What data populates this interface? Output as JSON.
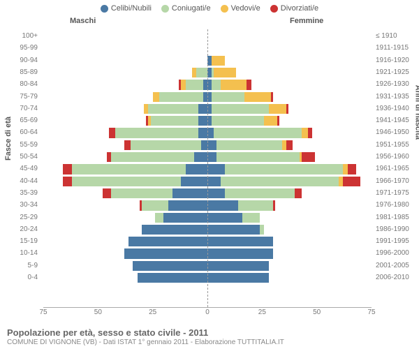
{
  "colors": {
    "single": "#4a79a4",
    "married": "#b6d7a8",
    "widowed": "#f4c04f",
    "divorced": "#cc3333",
    "text": "#666666",
    "axis": "#aaaaaa"
  },
  "legend": [
    {
      "key": "single",
      "label": "Celibi/Nubili"
    },
    {
      "key": "married",
      "label": "Coniugati/e"
    },
    {
      "key": "widowed",
      "label": "Vedovi/e"
    },
    {
      "key": "divorced",
      "label": "Divorziati/e"
    }
  ],
  "headers": {
    "male": "Maschi",
    "female": "Femmine"
  },
  "y_title": "Fasce di età",
  "y2_title": "Anni di nascita",
  "x_ticks": [
    -75,
    -50,
    -25,
    0,
    25,
    50,
    75
  ],
  "x_max": 75,
  "footer_title": "Popolazione per età, sesso e stato civile - 2011",
  "footer_sub": "COMUNE DI VIGNONE (VB) - Dati ISTAT 1° gennaio 2011 - Elaborazione TUTTITALIA.IT",
  "rows": [
    {
      "age": "100+",
      "birth": "≤ 1910",
      "m": {
        "s": 0,
        "c": 0,
        "w": 0,
        "d": 0
      },
      "f": {
        "s": 0,
        "c": 0,
        "w": 0,
        "d": 0
      }
    },
    {
      "age": "95-99",
      "birth": "1911-1915",
      "m": {
        "s": 0,
        "c": 0,
        "w": 0,
        "d": 0
      },
      "f": {
        "s": 0,
        "c": 0,
        "w": 0,
        "d": 0
      }
    },
    {
      "age": "90-94",
      "birth": "1916-1920",
      "m": {
        "s": 0,
        "c": 0,
        "w": 0,
        "d": 0
      },
      "f": {
        "s": 2,
        "c": 0,
        "w": 6,
        "d": 0
      }
    },
    {
      "age": "85-89",
      "birth": "1921-1925",
      "m": {
        "s": 0,
        "c": 5,
        "w": 2,
        "d": 0
      },
      "f": {
        "s": 2,
        "c": 1,
        "w": 10,
        "d": 0
      }
    },
    {
      "age": "80-84",
      "birth": "1926-1930",
      "m": {
        "s": 2,
        "c": 8,
        "w": 2,
        "d": 1
      },
      "f": {
        "s": 2,
        "c": 4,
        "w": 12,
        "d": 2
      }
    },
    {
      "age": "75-79",
      "birth": "1931-1935",
      "m": {
        "s": 2,
        "c": 20,
        "w": 3,
        "d": 0
      },
      "f": {
        "s": 2,
        "c": 15,
        "w": 12,
        "d": 1
      }
    },
    {
      "age": "70-74",
      "birth": "1936-1940",
      "m": {
        "s": 4,
        "c": 23,
        "w": 2,
        "d": 0
      },
      "f": {
        "s": 2,
        "c": 26,
        "w": 8,
        "d": 1
      }
    },
    {
      "age": "65-69",
      "birth": "1941-1945",
      "m": {
        "s": 4,
        "c": 22,
        "w": 1,
        "d": 1
      },
      "f": {
        "s": 2,
        "c": 24,
        "w": 6,
        "d": 1
      }
    },
    {
      "age": "60-64",
      "birth": "1946-1950",
      "m": {
        "s": 4,
        "c": 38,
        "w": 0,
        "d": 3
      },
      "f": {
        "s": 3,
        "c": 40,
        "w": 3,
        "d": 2
      }
    },
    {
      "age": "55-59",
      "birth": "1951-1955",
      "m": {
        "s": 3,
        "c": 32,
        "w": 0,
        "d": 3
      },
      "f": {
        "s": 4,
        "c": 30,
        "w": 2,
        "d": 3
      }
    },
    {
      "age": "50-54",
      "birth": "1956-1960",
      "m": {
        "s": 6,
        "c": 38,
        "w": 0,
        "d": 2
      },
      "f": {
        "s": 4,
        "c": 38,
        "w": 1,
        "d": 6
      }
    },
    {
      "age": "45-49",
      "birth": "1961-1965",
      "m": {
        "s": 10,
        "c": 52,
        "w": 0,
        "d": 4
      },
      "f": {
        "s": 8,
        "c": 54,
        "w": 2,
        "d": 4
      }
    },
    {
      "age": "40-44",
      "birth": "1966-1970",
      "m": {
        "s": 12,
        "c": 50,
        "w": 0,
        "d": 4
      },
      "f": {
        "s": 6,
        "c": 54,
        "w": 2,
        "d": 8
      }
    },
    {
      "age": "35-39",
      "birth": "1971-1975",
      "m": {
        "s": 16,
        "c": 28,
        "w": 0,
        "d": 4
      },
      "f": {
        "s": 8,
        "c": 32,
        "w": 0,
        "d": 3
      }
    },
    {
      "age": "30-34",
      "birth": "1976-1980",
      "m": {
        "s": 18,
        "c": 12,
        "w": 0,
        "d": 1
      },
      "f": {
        "s": 14,
        "c": 16,
        "w": 0,
        "d": 1
      }
    },
    {
      "age": "25-29",
      "birth": "1981-1985",
      "m": {
        "s": 20,
        "c": 4,
        "w": 0,
        "d": 0
      },
      "f": {
        "s": 16,
        "c": 8,
        "w": 0,
        "d": 0
      }
    },
    {
      "age": "20-24",
      "birth": "1986-1990",
      "m": {
        "s": 30,
        "c": 0,
        "w": 0,
        "d": 0
      },
      "f": {
        "s": 24,
        "c": 2,
        "w": 0,
        "d": 0
      }
    },
    {
      "age": "15-19",
      "birth": "1991-1995",
      "m": {
        "s": 36,
        "c": 0,
        "w": 0,
        "d": 0
      },
      "f": {
        "s": 30,
        "c": 0,
        "w": 0,
        "d": 0
      }
    },
    {
      "age": "10-14",
      "birth": "1996-2000",
      "m": {
        "s": 38,
        "c": 0,
        "w": 0,
        "d": 0
      },
      "f": {
        "s": 30,
        "c": 0,
        "w": 0,
        "d": 0
      }
    },
    {
      "age": "5-9",
      "birth": "2001-2005",
      "m": {
        "s": 34,
        "c": 0,
        "w": 0,
        "d": 0
      },
      "f": {
        "s": 28,
        "c": 0,
        "w": 0,
        "d": 0
      }
    },
    {
      "age": "0-4",
      "birth": "2006-2010",
      "m": {
        "s": 32,
        "c": 0,
        "w": 0,
        "d": 0
      },
      "f": {
        "s": 28,
        "c": 0,
        "w": 0,
        "d": 0
      }
    }
  ]
}
